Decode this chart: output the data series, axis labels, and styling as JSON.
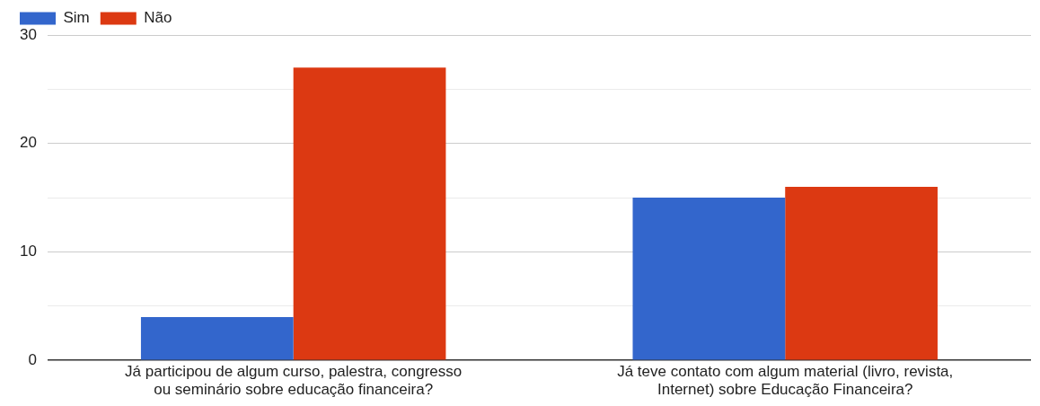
{
  "chart_data": {
    "type": "bar",
    "categories": [
      "Já participou de algum curso, palestra, congresso ou seminário sobre educação financeira?",
      "Já teve contato com algum material (livro, revista, Internet) sobre Educação Financeira?"
    ],
    "series": [
      {
        "name": "Sim",
        "color": "#3366cc",
        "values": [
          4,
          15
        ]
      },
      {
        "name": "Não",
        "color": "#dc3912",
        "values": [
          27,
          16
        ]
      }
    ],
    "ylim": [
      0,
      30
    ],
    "yticks": [
      0,
      {
        "value": 5,
        "label": null
      },
      10,
      {
        "value": 15,
        "label": null
      },
      20,
      {
        "value": 25,
        "label": null
      },
      30
    ],
    "grid": "y",
    "legend": "top left"
  }
}
